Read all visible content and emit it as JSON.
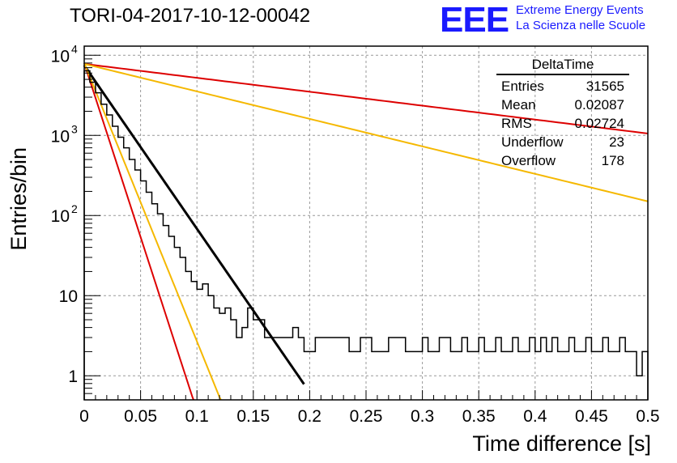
{
  "header": {
    "title": "TORI-04-2017-10-12-00042",
    "logo_text": "EEE",
    "logo_line1": "Extreme Energy Events",
    "logo_line2": "La Scienza nelle Scuole"
  },
  "stats_box": {
    "title": "DeltaTime",
    "rows": [
      {
        "label": "Entries",
        "value": "31565"
      },
      {
        "label": "Mean",
        "value": "0.02087"
      },
      {
        "label": "RMS",
        "value": "0.02724"
      },
      {
        "label": "Underflow",
        "value": "23"
      },
      {
        "label": "Overflow",
        "value": "178"
      }
    ]
  },
  "chart_data": {
    "type": "histogram",
    "title": "TORI-04-2017-10-12-00042",
    "xlabel": "Time difference [s]",
    "ylabel": "Entries/bin",
    "xlim": [
      0,
      0.5
    ],
    "ylim": [
      0.5,
      13000
    ],
    "y_scale": "log",
    "grid": true,
    "x_ticks": [
      "0",
      "0.05",
      "0.1",
      "0.15",
      "0.2",
      "0.25",
      "0.3",
      "0.35",
      "0.4",
      "0.45",
      "0.5"
    ],
    "y_ticks": [
      {
        "value": 1,
        "base": "1",
        "exp": ""
      },
      {
        "value": 10,
        "base": "10",
        "exp": ""
      },
      {
        "value": 100,
        "base": "10",
        "exp": "2"
      },
      {
        "value": 1000,
        "base": "10",
        "exp": "3"
      },
      {
        "value": 10000,
        "base": "10",
        "exp": "4"
      }
    ],
    "histogram": {
      "bin_width": 0.005,
      "color": "#000000",
      "counts": [
        6400,
        4600,
        3400,
        2450,
        1800,
        1300,
        950,
        700,
        500,
        370,
        270,
        195,
        140,
        105,
        75,
        55,
        40,
        30,
        20,
        15,
        12,
        14,
        10,
        7,
        6,
        7,
        5,
        3,
        4,
        7,
        5,
        5,
        3,
        3,
        3,
        3,
        3,
        4,
        3,
        2,
        2,
        3,
        3,
        3,
        3,
        3,
        3,
        2,
        2,
        3,
        3,
        2,
        2,
        2,
        3,
        3,
        3,
        2,
        2,
        2,
        3,
        2,
        2,
        3,
        3,
        2,
        2,
        3,
        2,
        2,
        3,
        2,
        2,
        3,
        2,
        2,
        3,
        2,
        2,
        3,
        2,
        3,
        2,
        3,
        2,
        2,
        3,
        2,
        2,
        3,
        2,
        2,
        3,
        2,
        2,
        3,
        2,
        2,
        1,
        2
      ]
    },
    "curves": [
      {
        "color": "#000000",
        "y0": 7500,
        "slope": 47,
        "x_max": 0.195,
        "width": 3
      },
      {
        "color": "#dd0000",
        "y0": 8000,
        "slope": 100,
        "x_max": 0.12,
        "width": 2
      },
      {
        "color": "#f5b800",
        "y0": 8000,
        "slope": 80,
        "x_max": 0.13,
        "width": 2
      },
      {
        "color": "#dd0000",
        "y0": 7800,
        "slope": 4.0,
        "x_max": 0.5,
        "width": 2
      },
      {
        "color": "#f5b800",
        "y0": 7800,
        "slope": 7.9,
        "x_max": 0.5,
        "width": 2
      }
    ]
  }
}
